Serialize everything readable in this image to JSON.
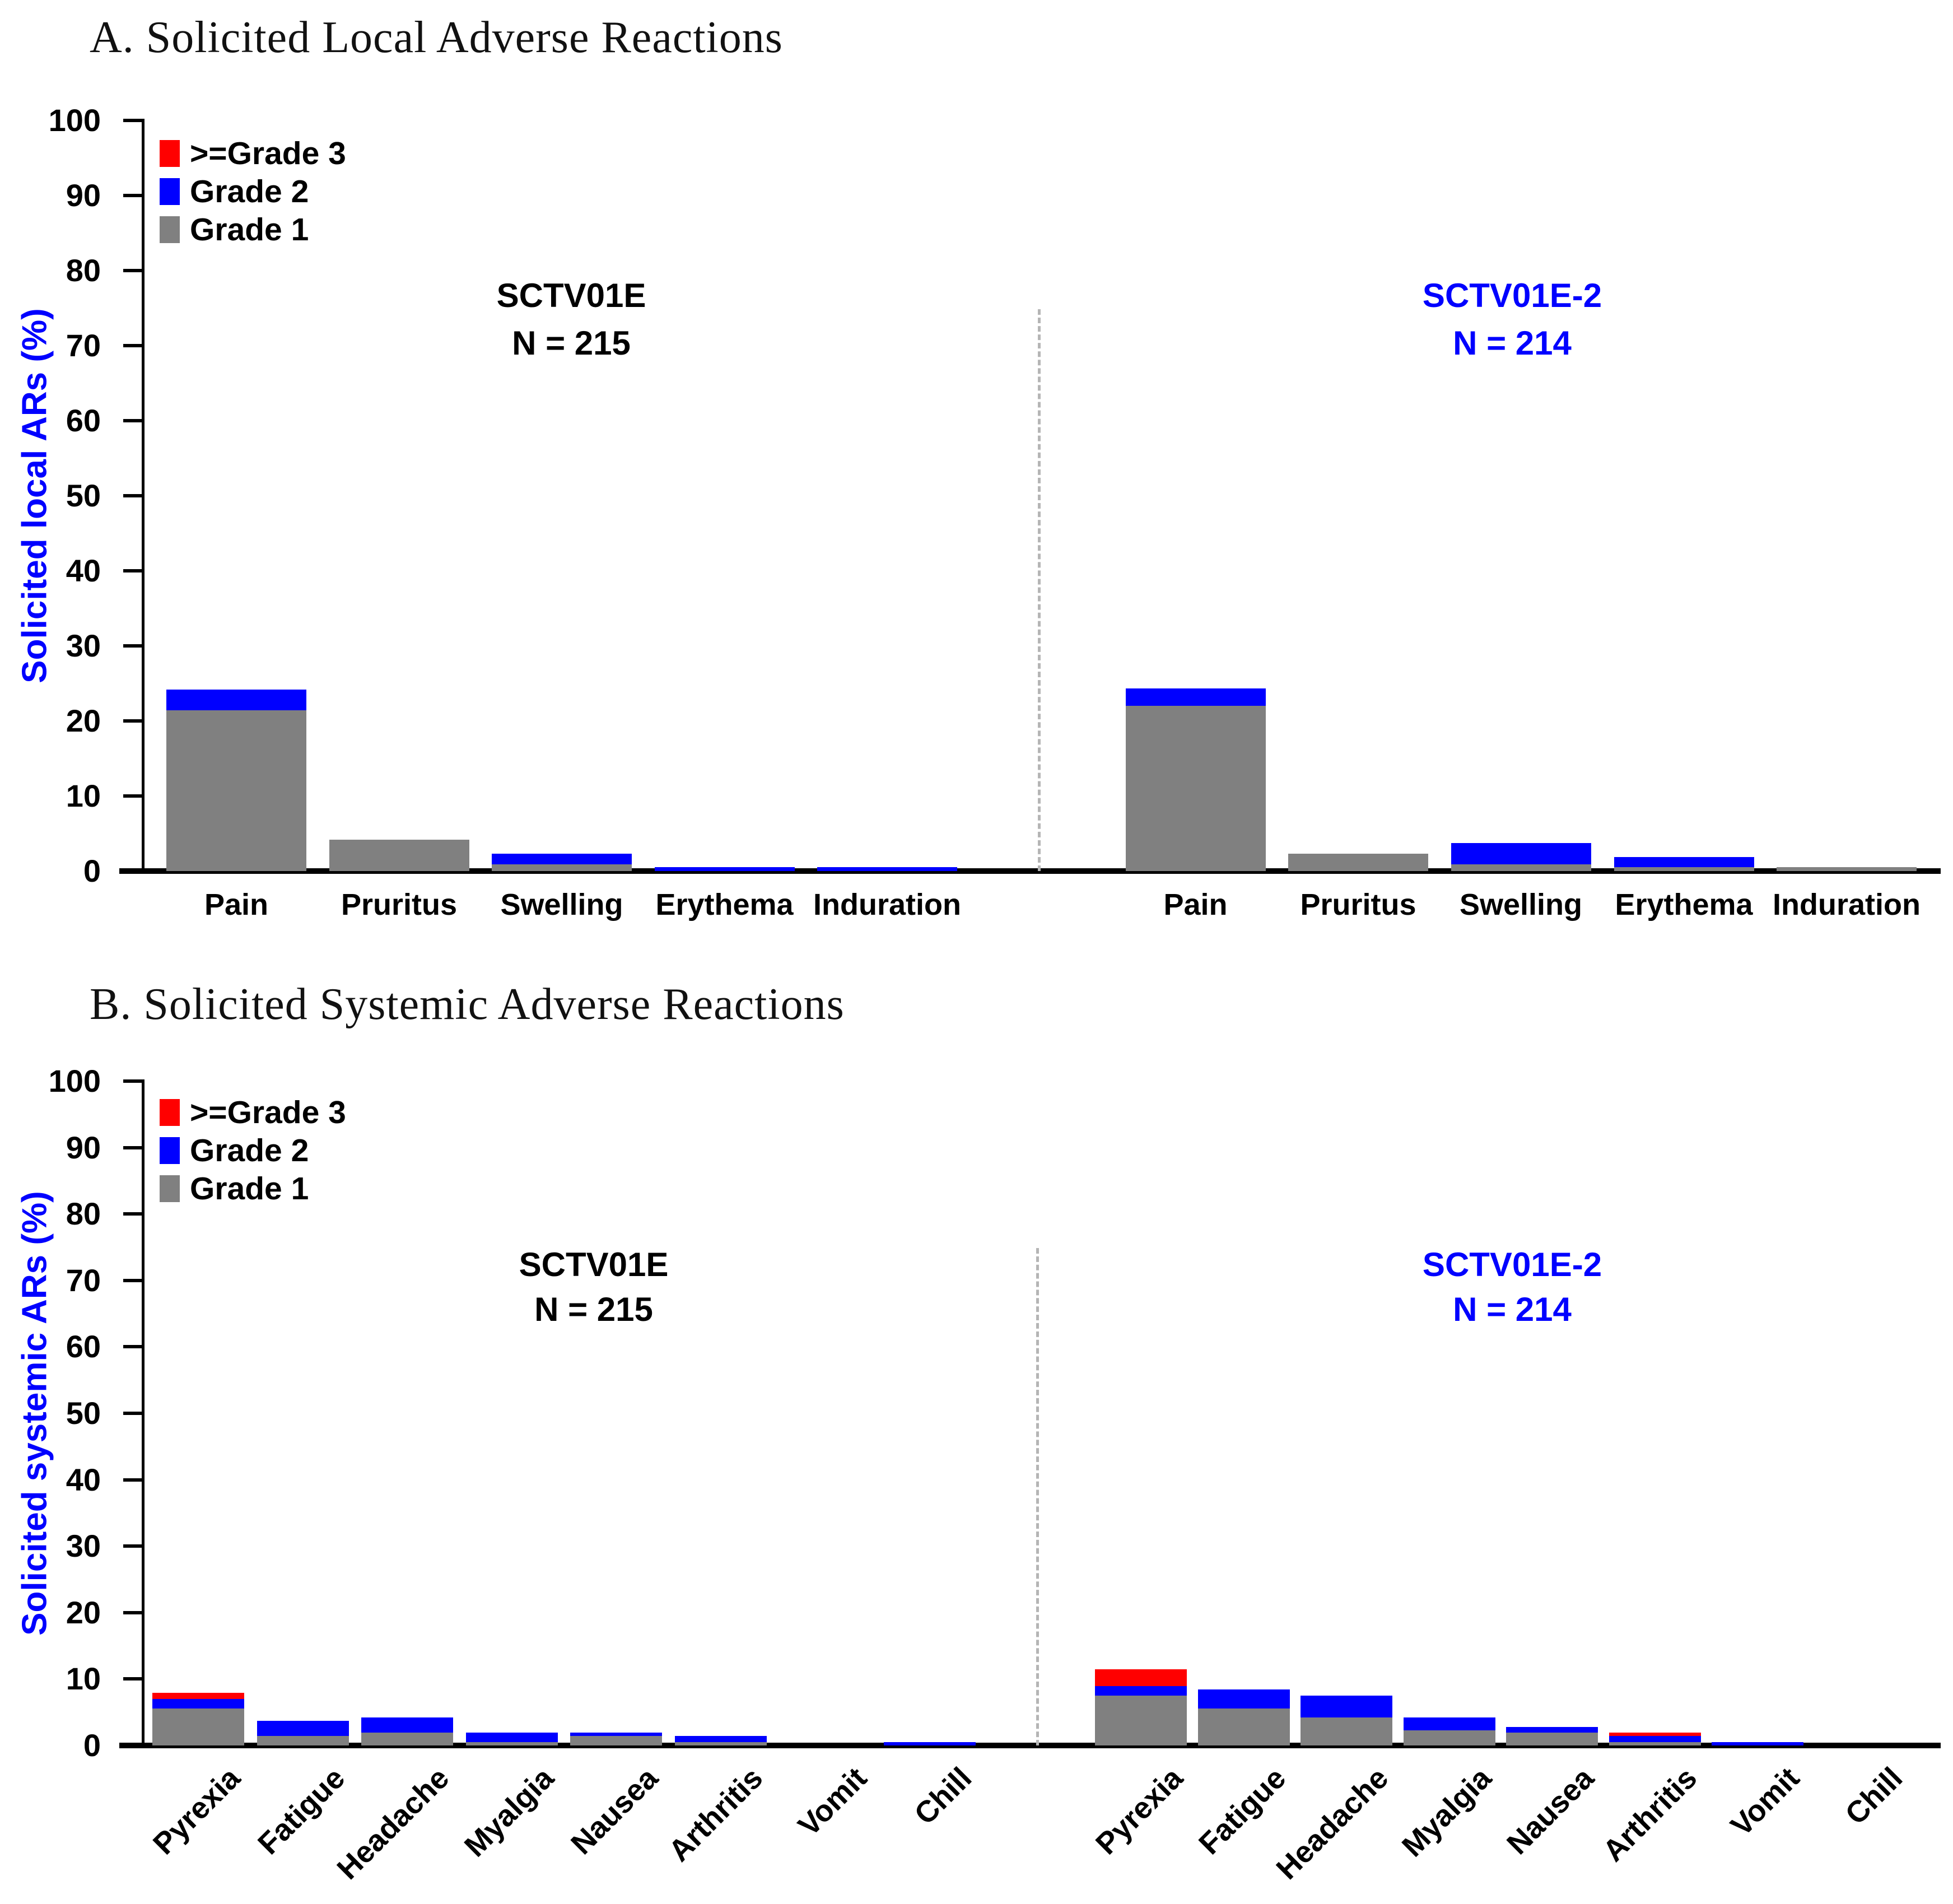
{
  "page": {
    "background": "#ffffff"
  },
  "legend": {
    "items": [
      {
        "label": ">=Grade 3",
        "color": "#ff0000"
      },
      {
        "label": "Grade 2",
        "color": "#0000ff"
      },
      {
        "label": "Grade 1",
        "color": "#808080"
      }
    ]
  },
  "chart_data": [
    {
      "type": "bar",
      "stacked": true,
      "title": "A. Solicited Local Adverse Reactions",
      "ylabel": "Solicited local ARs (%)",
      "ylabel_color": "#0000ff",
      "ylim": [
        0,
        100
      ],
      "yticks": [
        0,
        10,
        20,
        30,
        40,
        50,
        60,
        70,
        80,
        90,
        100
      ],
      "grid": false,
      "legend_position": "upper-left-inside",
      "categories": [
        "Pain",
        "Pruritus",
        "Swelling",
        "Erythema",
        "Induration"
      ],
      "groups": [
        {
          "name": "SCTV01E",
          "n_label": "N = 215",
          "color": "#000000",
          "series": [
            {
              "name": ">=Grade 3",
              "values": [
                0,
                0,
                0,
                0,
                0
              ]
            },
            {
              "name": "Grade 2",
              "values": [
                2.8,
                0,
                1.4,
                0.5,
                0.5
              ]
            },
            {
              "name": "Grade 1",
              "values": [
                21.4,
                4.2,
                0.9,
                0,
                0
              ]
            }
          ]
        },
        {
          "name": "SCTV01E-2",
          "n_label": "N = 214",
          "color": "#0000ff",
          "series": [
            {
              "name": ">=Grade 3",
              "values": [
                0,
                0,
                0,
                0,
                0
              ]
            },
            {
              "name": "Grade 2",
              "values": [
                2.3,
                0,
                2.8,
                1.4,
                0
              ]
            },
            {
              "name": "Grade 1",
              "values": [
                22.0,
                2.3,
                0.9,
                0.5,
                0.5
              ]
            }
          ]
        }
      ]
    },
    {
      "type": "bar",
      "stacked": true,
      "title": "B. Solicited Systemic Adverse Reactions",
      "ylabel": "Solicited systemic ARs (%)",
      "ylabel_color": "#0000ff",
      "ylim": [
        0,
        100
      ],
      "yticks": [
        0,
        10,
        20,
        30,
        40,
        50,
        60,
        70,
        80,
        90,
        100
      ],
      "grid": false,
      "legend_position": "upper-left-inside",
      "categories": [
        "Pyrexia",
        "Fatigue",
        "Headache",
        "Myalgia",
        "Nausea",
        "Arthritis",
        "Vomit",
        "Chill"
      ],
      "groups": [
        {
          "name": "SCTV01E",
          "n_label": "N = 215",
          "color": "#000000",
          "series": [
            {
              "name": ">=Grade 3",
              "values": [
                0.9,
                0,
                0,
                0,
                0,
                0,
                0,
                0
              ]
            },
            {
              "name": "Grade 2",
              "values": [
                1.4,
                2.3,
                2.3,
                1.4,
                0.5,
                0.9,
                0,
                0.5
              ]
            },
            {
              "name": "Grade 1",
              "values": [
                5.6,
                1.4,
                1.9,
                0.5,
                1.4,
                0.5,
                0,
                0
              ]
            }
          ]
        },
        {
          "name": "SCTV01E-2",
          "n_label": "N = 214",
          "color": "#0000ff",
          "series": [
            {
              "name": ">=Grade 3",
              "values": [
                2.6,
                0,
                0,
                0,
                0,
                0.5,
                0,
                0
              ]
            },
            {
              "name": "Grade 2",
              "values": [
                1.4,
                2.8,
                3.3,
                1.9,
                0.9,
                0.9,
                0.5,
                0
              ]
            },
            {
              "name": "Grade 1",
              "values": [
                7.5,
                5.6,
                4.2,
                2.3,
                1.9,
                0.5,
                0,
                0
              ]
            }
          ]
        }
      ]
    }
  ]
}
